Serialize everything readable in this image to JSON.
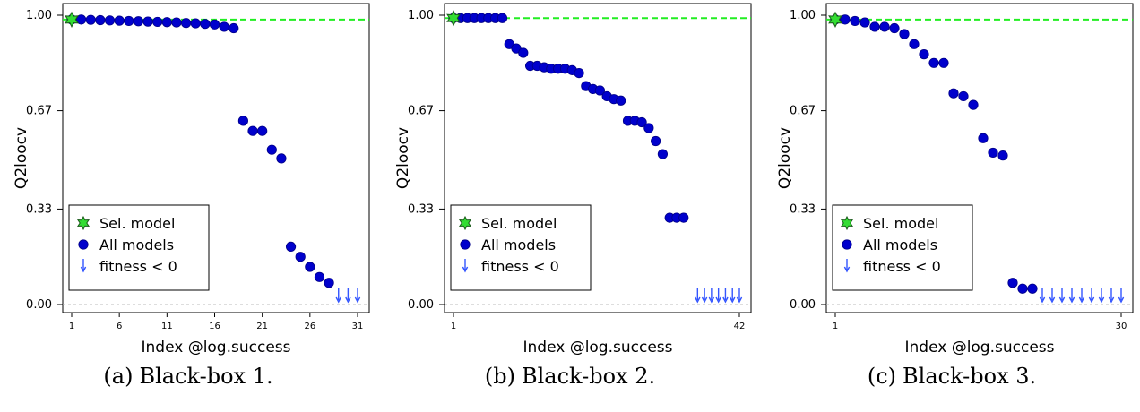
{
  "colors": {
    "points": "#0000cc",
    "selected": "#33dd33",
    "reference_line": "#22ee22",
    "zero_line": "#bbbbbb",
    "arrow": "#3355ff"
  },
  "chart_data": [
    {
      "type": "scatter",
      "caption_label": "(a)",
      "caption_text": "Black-box 1.",
      "xlabel": "Index @log.success",
      "ylabel": "Q2loocv",
      "xlim": [
        1,
        31
      ],
      "ylim": [
        0,
        1
      ],
      "xticks": [
        "1",
        "6",
        "11",
        "16",
        "21",
        "26",
        "31"
      ],
      "yticks": [
        "0.00",
        "0.33",
        "0.67",
        "1.00"
      ],
      "reference_value": 0.985,
      "legend": [
        "Sel. model",
        "All models",
        "fitness < 0"
      ],
      "legend_position": "bottom-left",
      "selected": {
        "x": 1,
        "y": 0.985
      },
      "x": [
        1,
        2,
        3,
        4,
        5,
        6,
        7,
        8,
        9,
        10,
        11,
        12,
        13,
        14,
        15,
        16,
        17,
        18,
        19,
        20,
        21,
        22,
        23,
        24,
        25,
        26,
        27,
        28
      ],
      "values": [
        0.985,
        0.985,
        0.984,
        0.983,
        0.982,
        0.981,
        0.98,
        0.979,
        0.978,
        0.977,
        0.976,
        0.975,
        0.973,
        0.972,
        0.97,
        0.968,
        0.96,
        0.955,
        0.635,
        0.6,
        0.6,
        0.535,
        0.505,
        0.2,
        0.165,
        0.13,
        0.095,
        0.075
      ],
      "negative_fitness_x": [
        29,
        30,
        31
      ]
    },
    {
      "type": "scatter",
      "caption_label": "(b)",
      "caption_text": "Black-box 2.",
      "xlabel": "Index @log.success",
      "ylabel": "Q2loocv",
      "xlim": [
        1,
        42
      ],
      "ylim": [
        0,
        1
      ],
      "xticks": [
        "1",
        "42"
      ],
      "yticks": [
        "0.00",
        "0.33",
        "0.67",
        "1.00"
      ],
      "reference_value": 0.99,
      "legend": [
        "Sel. model",
        "All models",
        "fitness < 0"
      ],
      "legend_position": "bottom-left",
      "selected": {
        "x": 1,
        "y": 0.99
      },
      "x": [
        1,
        2,
        3,
        4,
        5,
        6,
        7,
        8,
        9,
        10,
        11,
        12,
        13,
        14,
        15,
        16,
        17,
        18,
        19,
        20,
        21,
        22,
        23,
        24,
        25,
        26,
        27,
        28,
        29,
        30,
        31,
        32,
        33,
        34
      ],
      "values": [
        0.99,
        0.99,
        0.99,
        0.99,
        0.99,
        0.99,
        0.99,
        0.99,
        0.9,
        0.885,
        0.87,
        0.825,
        0.825,
        0.82,
        0.815,
        0.815,
        0.815,
        0.81,
        0.8,
        0.755,
        0.745,
        0.74,
        0.72,
        0.71,
        0.705,
        0.635,
        0.635,
        0.63,
        0.61,
        0.565,
        0.52,
        0.3,
        0.3,
        0.3
      ],
      "negative_fitness_x": [
        36,
        37,
        38,
        39,
        40,
        41,
        42
      ]
    },
    {
      "type": "scatter",
      "caption_label": "(c)",
      "caption_text": "Black-box 3.",
      "xlabel": "Index @log.success",
      "ylabel": "Q2loocv",
      "xlim": [
        1,
        30
      ],
      "ylim": [
        0,
        1
      ],
      "xticks": [
        "1",
        "30"
      ],
      "yticks": [
        "0.00",
        "0.33",
        "0.67",
        "1.00"
      ],
      "reference_value": 0.985,
      "legend": [
        "Sel. model",
        "All models",
        "fitness < 0"
      ],
      "legend_position": "bottom-left",
      "selected": {
        "x": 1,
        "y": 0.985
      },
      "x": [
        1,
        2,
        3,
        4,
        5,
        6,
        7,
        8,
        9,
        10,
        11,
        12,
        13,
        14,
        15,
        16,
        17,
        18,
        19,
        20,
        21
      ],
      "values": [
        0.985,
        0.985,
        0.98,
        0.975,
        0.96,
        0.96,
        0.955,
        0.935,
        0.9,
        0.865,
        0.835,
        0.835,
        0.73,
        0.72,
        0.69,
        0.575,
        0.525,
        0.515,
        0.075,
        0.055,
        0.055
      ],
      "negative_fitness_x": [
        22,
        23,
        24,
        25,
        26,
        27,
        28,
        29,
        30
      ]
    }
  ]
}
